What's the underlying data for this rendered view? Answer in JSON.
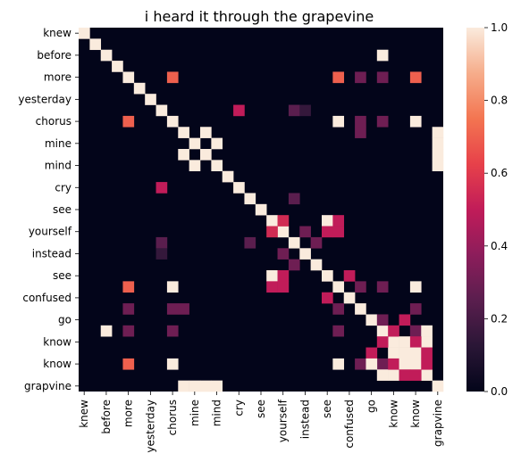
{
  "chart_data": {
    "type": "heatmap",
    "title": "i heard it through the grapevine",
    "xlabel": "",
    "ylabel": "",
    "colormap": "rocket",
    "colormap_stops": [
      "#03051a",
      "#2a1636",
      "#5a1e4e",
      "#8c1d5b",
      "#c11c59",
      "#e7414a",
      "#f37551",
      "#f6ad8b",
      "#faebdd"
    ],
    "vmin": 0,
    "vmax": 1,
    "colorbar_ticks": [
      "0.0",
      "0.2",
      "0.4",
      "0.6",
      "0.8",
      "1.0"
    ],
    "colorbar_tick_values": [
      0.0,
      0.2,
      0.4,
      0.6,
      0.8,
      1.0
    ],
    "x_tick_labels": [
      "knew",
      "before",
      "more",
      "yesterday",
      "chorus",
      "mine",
      "mind",
      "cry",
      "see",
      "yourself",
      "instead",
      "see",
      "confused",
      "go",
      "know",
      "know",
      "grapvine"
    ],
    "y_tick_labels": [
      "knew",
      "before",
      "more",
      "yesterday",
      "chorus",
      "mine",
      "mind",
      "cry",
      "see",
      "yourself",
      "instead",
      "see",
      "confused",
      "go",
      "know",
      "know",
      "grapvine"
    ],
    "n_rows": 33,
    "n_cols": 33,
    "tick_every": 2,
    "cells": [
      [
        0,
        0,
        1
      ],
      [
        1,
        1,
        1
      ],
      [
        2,
        2,
        1
      ],
      [
        3,
        3,
        1
      ],
      [
        4,
        4,
        1
      ],
      [
        5,
        5,
        1
      ],
      [
        6,
        6,
        1
      ],
      [
        7,
        7,
        1
      ],
      [
        8,
        8,
        1
      ],
      [
        9,
        9,
        1
      ],
      [
        10,
        10,
        1
      ],
      [
        11,
        11,
        1
      ],
      [
        12,
        12,
        1
      ],
      [
        13,
        13,
        1
      ],
      [
        14,
        14,
        1
      ],
      [
        15,
        15,
        1
      ],
      [
        16,
        16,
        1
      ],
      [
        17,
        17,
        1
      ],
      [
        18,
        18,
        1
      ],
      [
        19,
        19,
        1
      ],
      [
        20,
        20,
        1
      ],
      [
        21,
        21,
        1
      ],
      [
        22,
        22,
        1
      ],
      [
        23,
        23,
        1
      ],
      [
        24,
        24,
        1
      ],
      [
        25,
        25,
        1
      ],
      [
        26,
        26,
        1
      ],
      [
        27,
        27,
        1
      ],
      [
        28,
        28,
        1
      ],
      [
        29,
        29,
        1
      ],
      [
        30,
        30,
        1
      ],
      [
        31,
        31,
        1
      ],
      [
        32,
        32,
        1
      ],
      [
        2,
        27,
        1
      ],
      [
        27,
        2,
        1
      ],
      [
        4,
        8,
        0.7
      ],
      [
        4,
        23,
        0.7
      ],
      [
        4,
        25,
        0.3
      ],
      [
        4,
        27,
        0.3
      ],
      [
        4,
        30,
        0.7
      ],
      [
        8,
        4,
        0.7
      ],
      [
        8,
        23,
        1
      ],
      [
        8,
        25,
        0.3
      ],
      [
        8,
        27,
        0.3
      ],
      [
        8,
        30,
        1
      ],
      [
        23,
        4,
        0.7
      ],
      [
        23,
        8,
        1
      ],
      [
        23,
        25,
        0.3
      ],
      [
        23,
        27,
        0.3
      ],
      [
        23,
        30,
        1
      ],
      [
        30,
        4,
        0.7
      ],
      [
        30,
        8,
        1
      ],
      [
        30,
        23,
        1
      ],
      [
        30,
        25,
        0.3
      ],
      [
        30,
        27,
        0.3
      ],
      [
        25,
        4,
        0.3
      ],
      [
        25,
        8,
        0.3
      ],
      [
        25,
        23,
        0.3
      ],
      [
        25,
        30,
        0.3
      ],
      [
        27,
        4,
        0.3
      ],
      [
        27,
        8,
        0.3
      ],
      [
        27,
        23,
        0.3
      ],
      [
        27,
        30,
        0.3
      ],
      [
        7,
        19,
        0.25
      ],
      [
        7,
        20,
        0.15
      ],
      [
        19,
        7,
        0.25
      ],
      [
        20,
        7,
        0.15
      ],
      [
        7,
        14,
        0.5
      ],
      [
        14,
        7,
        0.5
      ],
      [
        9,
        11,
        1
      ],
      [
        9,
        32,
        1
      ],
      [
        11,
        9,
        1
      ],
      [
        11,
        32,
        1
      ],
      [
        32,
        9,
        1
      ],
      [
        32,
        11,
        1
      ],
      [
        10,
        12,
        1
      ],
      [
        10,
        32,
        1
      ],
      [
        12,
        10,
        1
      ],
      [
        12,
        32,
        1
      ],
      [
        32,
        10,
        1
      ],
      [
        32,
        12,
        1
      ],
      [
        9,
        25,
        0.3
      ],
      [
        25,
        9,
        0.3
      ],
      [
        15,
        19,
        0.25
      ],
      [
        19,
        15,
        0.25
      ],
      [
        17,
        18,
        0.55
      ],
      [
        17,
        22,
        1
      ],
      [
        17,
        23,
        0.5
      ],
      [
        18,
        17,
        0.55
      ],
      [
        18,
        22,
        0.5
      ],
      [
        18,
        23,
        0.5
      ],
      [
        22,
        17,
        1
      ],
      [
        22,
        18,
        0.5
      ],
      [
        23,
        17,
        0.5
      ],
      [
        23,
        18,
        0.5
      ],
      [
        18,
        20,
        0.3
      ],
      [
        20,
        18,
        0.3
      ],
      [
        19,
        21,
        0.3
      ],
      [
        21,
        19,
        0.3
      ],
      [
        22,
        24,
        0.5
      ],
      [
        24,
        22,
        0.5
      ],
      [
        27,
        28,
        0.5
      ],
      [
        27,
        30,
        0.3
      ],
      [
        27,
        31,
        1
      ],
      [
        28,
        27,
        0.5
      ],
      [
        28,
        31,
        1
      ],
      [
        31,
        27,
        1
      ],
      [
        31,
        28,
        1
      ],
      [
        28,
        29,
        1
      ],
      [
        29,
        28,
        1
      ],
      [
        28,
        30,
        0.5
      ],
      [
        30,
        28,
        0.5
      ],
      [
        29,
        30,
        1
      ],
      [
        29,
        31,
        0.5
      ],
      [
        30,
        29,
        1
      ],
      [
        30,
        31,
        0.5
      ],
      [
        31,
        29,
        0.5
      ],
      [
        31,
        30,
        0.5
      ],
      [
        26,
        27,
        0.3
      ],
      [
        26,
        29,
        0.5
      ],
      [
        29,
        26,
        0.5
      ],
      [
        30,
        26,
        1
      ]
    ]
  }
}
